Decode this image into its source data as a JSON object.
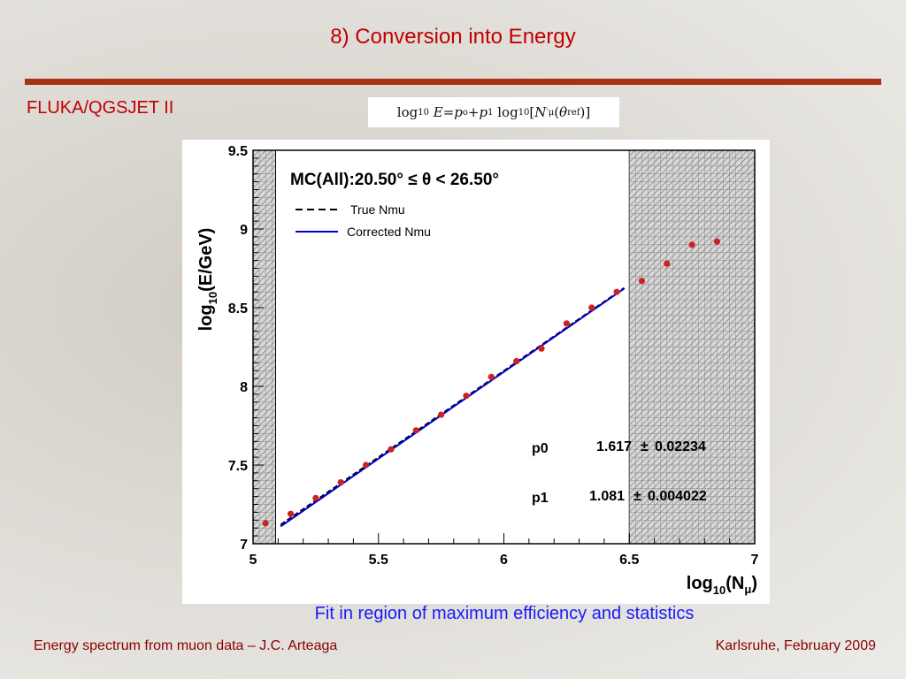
{
  "slide": {
    "title": "8) Conversion into Energy",
    "subtitle": "FLUKA/QGSJET II",
    "formula": {
      "log": "log",
      "base": "10",
      "E": "E",
      "eq": " = ",
      "p": "p",
      "o": "o",
      "plus": " + ",
      "one": "1",
      "N": "N",
      "mu": "μ",
      "theta": "θ",
      "ref": "ref"
    },
    "caption": "Fit in region of maximum efficiency and statistics",
    "footer_left": "Energy spectrum from muon data – J.C. Arteaga",
    "footer_right": "Karlsruhe,  February 2009"
  },
  "chart_data": {
    "type": "scatter",
    "title": "MC(All):20.50° ≤ θ < 26.50°",
    "xlabel": "log10(Nμ)",
    "ylabel": "log10(E/GeV)",
    "xlim": [
      5,
      7
    ],
    "ylim": [
      7,
      9.5
    ],
    "x_ticks": [
      "5",
      "5.5",
      "6",
      "6.5",
      "7"
    ],
    "y_ticks": [
      "7",
      "7.5",
      "8",
      "8.5",
      "9",
      "9.5"
    ],
    "excluded_regions": [
      [
        5,
        5.09
      ],
      [
        6.5,
        7
      ]
    ],
    "points": {
      "color": "#cc2222",
      "x": [
        5.05,
        5.15,
        5.25,
        5.35,
        5.45,
        5.55,
        5.65,
        5.75,
        5.85,
        5.95,
        6.05,
        6.15,
        6.25,
        6.35,
        6.45,
        6.55,
        6.65,
        6.75,
        6.85
      ],
      "y": [
        7.13,
        7.19,
        7.29,
        7.39,
        7.5,
        7.6,
        7.72,
        7.82,
        7.94,
        8.06,
        8.16,
        8.24,
        8.4,
        8.5,
        8.6,
        8.67,
        8.78,
        8.9,
        8.92
      ]
    },
    "series": [
      {
        "name": "True Nmu",
        "style": "dashed",
        "color": "#000000",
        "x": [
          5.11,
          6.48
        ],
        "y": [
          7.12,
          8.625
        ]
      },
      {
        "name": "Corrected Nmu",
        "style": "solid",
        "color": "#0000cc",
        "x": [
          5.11,
          6.48
        ],
        "y": [
          7.11,
          8.622
        ]
      }
    ],
    "fit_params": [
      {
        "name": "p0",
        "value": "1.617",
        "pm": "±",
        "error": "0.02234"
      },
      {
        "name": "p1",
        "value": "1.081",
        "pm": "±",
        "error": "0.004022"
      }
    ],
    "grid": true,
    "legend_position": "top-left"
  }
}
